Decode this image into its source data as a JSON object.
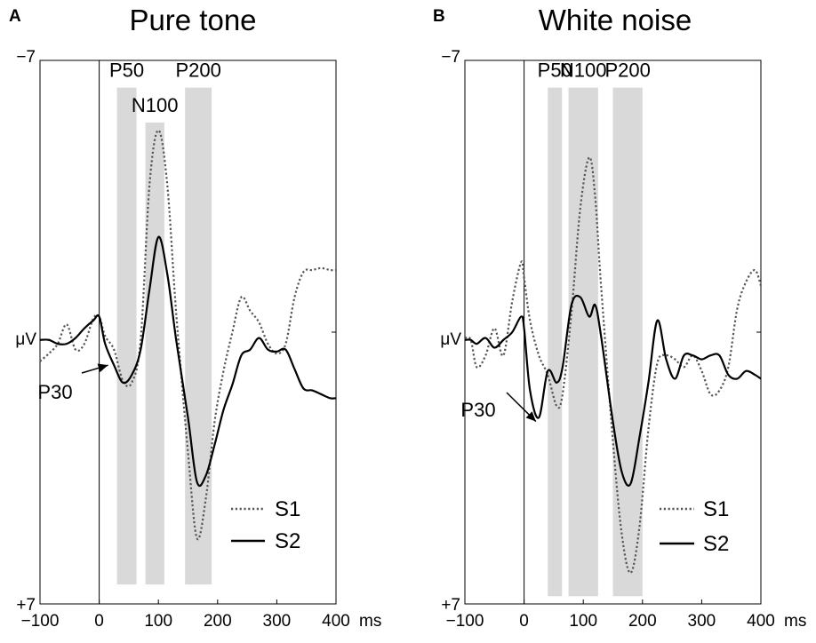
{
  "chart_data": [
    {
      "type": "line",
      "panel_label": "A",
      "title": "Pure tone",
      "xlabel_unit": "ms",
      "ylabel": "μV",
      "xlim": [
        -100,
        400
      ],
      "ylim": [
        -7,
        7
      ],
      "y_inverted": true,
      "xticks": [
        "−100",
        "0",
        "100",
        "200",
        "300",
        "400"
      ],
      "xtick_values": [
        -100,
        0,
        100,
        200,
        300,
        400
      ],
      "ytick_top": "−7",
      "ytick_bottom": "+7",
      "shaded_windows": [
        {
          "name": "P50",
          "x": [
            30,
            63
          ],
          "y": [
            -6.3,
            6.5
          ]
        },
        {
          "name": "N100",
          "x": [
            78,
            110
          ],
          "y": [
            -5.4,
            6.5
          ]
        },
        {
          "name": "P200",
          "x": [
            145,
            190
          ],
          "y": [
            -6.3,
            6.5
          ]
        }
      ],
      "annotation": {
        "label": "P30",
        "x": 15,
        "y": 0.85
      },
      "series": [
        {
          "name": "S1",
          "style": "dotted",
          "x": [
            -100,
            -85,
            -70,
            -55,
            -40,
            -25,
            -10,
            0,
            10,
            25,
            40,
            55,
            70,
            85,
            100,
            115,
            130,
            150,
            165,
            180,
            195,
            210,
            225,
            240,
            255,
            270,
            285,
            300,
            315,
            330,
            345,
            360,
            375,
            390,
            400
          ],
          "values": [
            0.75,
            0.55,
            0.3,
            -0.2,
            0.45,
            0.3,
            -0.35,
            -0.4,
            0.1,
            0.45,
            1.25,
            1.3,
            0.2,
            -3.8,
            -5.2,
            -3.8,
            -0.5,
            3.1,
            5.3,
            4.3,
            2.3,
            1.0,
            0.0,
            -0.9,
            -0.55,
            -0.25,
            0.3,
            0.55,
            0.3,
            -0.9,
            -1.55,
            -1.6,
            -1.65,
            -1.6,
            -1.6
          ]
        },
        {
          "name": "S2",
          "style": "solid",
          "x": [
            -100,
            -85,
            -70,
            -55,
            -40,
            -25,
            -10,
            0,
            10,
            25,
            40,
            55,
            70,
            85,
            100,
            115,
            130,
            150,
            165,
            180,
            195,
            210,
            225,
            240,
            255,
            270,
            285,
            300,
            315,
            330,
            345,
            360,
            375,
            390,
            400
          ],
          "values": [
            0.2,
            0.2,
            0.3,
            0.3,
            0.15,
            -0.1,
            -0.3,
            -0.4,
            0.3,
            0.85,
            1.3,
            1.1,
            0.45,
            -1.1,
            -2.45,
            -1.5,
            0.2,
            2.2,
            3.85,
            3.7,
            2.9,
            2.0,
            1.35,
            0.6,
            0.45,
            0.15,
            0.45,
            0.5,
            0.45,
            0.95,
            1.45,
            1.5,
            1.6,
            1.7,
            1.7
          ]
        }
      ],
      "legend": [
        {
          "label": "S1",
          "style": "dotted"
        },
        {
          "label": "S2",
          "style": "solid"
        }
      ]
    },
    {
      "type": "line",
      "panel_label": "B",
      "title": "White noise",
      "xlabel_unit": "ms",
      "ylabel": "μV",
      "xlim": [
        -100,
        400
      ],
      "ylim": [
        -7,
        7
      ],
      "y_inverted": true,
      "xticks": [
        "−100",
        "0",
        "100",
        "200",
        "300",
        "400"
      ],
      "xtick_values": [
        -100,
        0,
        100,
        200,
        300,
        400
      ],
      "ytick_top": "−7",
      "ytick_bottom": "+7",
      "shaded_windows": [
        {
          "name": "P50",
          "x": [
            40,
            64
          ],
          "y": [
            -6.3,
            6.8
          ]
        },
        {
          "name": "N100",
          "x": [
            75,
            125
          ],
          "y": [
            -6.3,
            6.8
          ]
        },
        {
          "name": "P200",
          "x": [
            150,
            200
          ],
          "y": [
            -6.3,
            6.8
          ]
        }
      ],
      "annotation": {
        "label": "P30",
        "x": 20,
        "y": 2.3
      },
      "series": [
        {
          "name": "S1",
          "style": "dotted",
          "x": [
            -100,
            -90,
            -80,
            -65,
            -50,
            -35,
            -20,
            -5,
            0,
            10,
            25,
            40,
            55,
            65,
            80,
            95,
            110,
            120,
            130,
            150,
            165,
            180,
            195,
            210,
            225,
            240,
            255,
            270,
            285,
            300,
            315,
            330,
            345,
            360,
            375,
            390,
            400
          ],
          "values": [
            0.15,
            0.2,
            0.9,
            0.6,
            -0.1,
            0.6,
            -0.8,
            -1.8,
            -1.4,
            -0.3,
            0.6,
            1.1,
            1.9,
            1.6,
            -0.5,
            -3.2,
            -4.5,
            -3.5,
            -1.2,
            2.8,
            5.2,
            6.2,
            5.0,
            2.5,
            0.8,
            0.6,
            0.7,
            0.9,
            0.6,
            1.0,
            1.6,
            1.5,
            0.9,
            -0.6,
            -1.3,
            -1.6,
            -1.2
          ]
        },
        {
          "name": "S2",
          "style": "solid",
          "x": [
            -100,
            -90,
            -80,
            -65,
            -50,
            -35,
            -20,
            -5,
            0,
            10,
            25,
            40,
            55,
            65,
            80,
            95,
            110,
            120,
            130,
            150,
            165,
            180,
            195,
            210,
            225,
            240,
            255,
            270,
            285,
            300,
            315,
            330,
            345,
            360,
            375,
            390,
            400
          ],
          "values": [
            0.2,
            0.2,
            0.3,
            0.15,
            0.4,
            0.2,
            0.0,
            -0.4,
            -0.1,
            1.5,
            2.2,
            1.0,
            1.3,
            0.9,
            -0.7,
            -0.9,
            -0.4,
            -0.7,
            0.1,
            2.3,
            3.6,
            3.9,
            2.7,
            1.3,
            -0.3,
            0.7,
            1.2,
            0.6,
            0.6,
            0.7,
            0.6,
            0.6,
            1.1,
            1.2,
            1.0,
            1.1,
            1.2
          ]
        }
      ],
      "legend": [
        {
          "label": "S1",
          "style": "dotted"
        },
        {
          "label": "S2",
          "style": "solid"
        }
      ]
    }
  ]
}
